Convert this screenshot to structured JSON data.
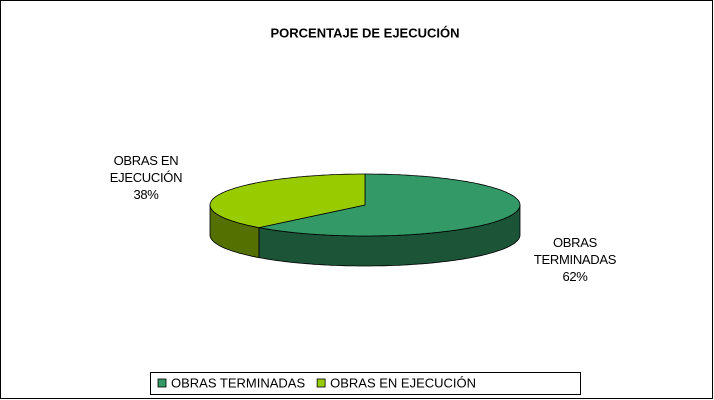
{
  "chart_data": {
    "type": "pie",
    "title": "PORCENTAJE DE EJECUCIÓN",
    "categories": [
      "OBRAS TERMINADAS",
      "OBRAS EN EJECUCIÓN"
    ],
    "values": [
      62,
      38
    ],
    "value_labels": [
      "62%",
      "38%"
    ],
    "colors": [
      "#339966",
      "#99cc00"
    ],
    "legend": "bottom"
  }
}
